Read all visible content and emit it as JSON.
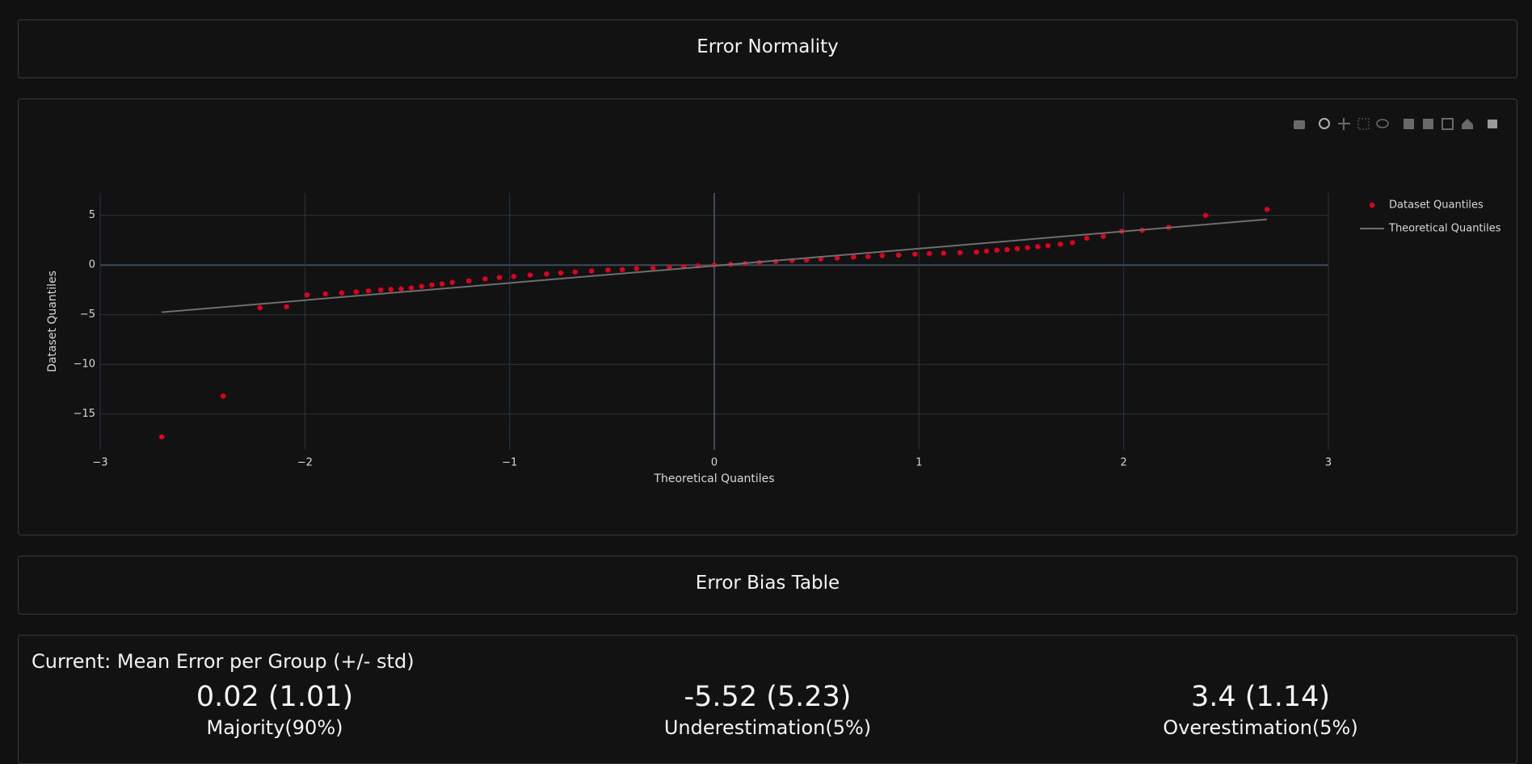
{
  "header": {
    "title": "Error Normality"
  },
  "chart_data": {
    "type": "scatter",
    "x_label": "Theoretical Quantiles",
    "y_label": "Dataset Quantiles",
    "xlim": [
      -3,
      3
    ],
    "ylim": [
      -18.6,
      7.25
    ],
    "xticks": [
      {
        "value": -3,
        "label": "−3"
      },
      {
        "value": -2,
        "label": "−2"
      },
      {
        "value": -1,
        "label": "−1"
      },
      0,
      1,
      2,
      3
    ],
    "yticks": [
      {
        "value": -15,
        "label": "−15"
      },
      {
        "value": -10,
        "label": "−10"
      },
      {
        "value": -5,
        "label": "−5"
      },
      0,
      5
    ],
    "grid": true,
    "series": [
      {
        "name": "Dataset Quantiles",
        "color": "#e0001b",
        "mode": "markers",
        "x": [
          -2.7,
          -2.4,
          -2.22,
          -2.09,
          -1.99,
          -1.9,
          -1.82,
          -1.75,
          -1.69,
          -1.63,
          -1.58,
          -1.53,
          -1.48,
          -1.43,
          -1.38,
          -1.33,
          -1.28,
          -1.2,
          -1.12,
          -1.05,
          -0.98,
          -0.9,
          -0.82,
          -0.75,
          -0.68,
          -0.6,
          -0.52,
          -0.45,
          -0.38,
          -0.3,
          -0.22,
          -0.15,
          -0.08,
          0,
          0.08,
          0.15,
          0.22,
          0.3,
          0.38,
          0.45,
          0.52,
          0.6,
          0.68,
          0.75,
          0.82,
          0.9,
          0.98,
          1.05,
          1.12,
          1.2,
          1.28,
          1.33,
          1.38,
          1.43,
          1.48,
          1.53,
          1.58,
          1.63,
          1.69,
          1.75,
          1.82,
          1.9,
          1.99,
          2.09,
          2.22,
          2.4,
          2.7
        ],
        "values": [
          -17.3,
          -13.2,
          -4.3,
          -4.2,
          -3.0,
          -2.9,
          -2.8,
          -2.7,
          -2.6,
          -2.5,
          -2.45,
          -2.4,
          -2.3,
          -2.15,
          -2.0,
          -1.9,
          -1.75,
          -1.6,
          -1.4,
          -1.25,
          -1.15,
          -1.0,
          -0.9,
          -0.8,
          -0.7,
          -0.6,
          -0.5,
          -0.45,
          -0.35,
          -0.3,
          -0.22,
          -0.15,
          -0.08,
          0,
          0.08,
          0.15,
          0.25,
          0.35,
          0.45,
          0.5,
          0.6,
          0.7,
          0.8,
          0.85,
          0.95,
          1.0,
          1.1,
          1.15,
          1.2,
          1.25,
          1.3,
          1.4,
          1.5,
          1.55,
          1.65,
          1.75,
          1.85,
          1.95,
          2.1,
          2.25,
          2.7,
          2.9,
          3.4,
          3.5,
          3.8,
          5.0,
          5.6
        ]
      },
      {
        "name": "Theoretical Quantiles",
        "color": "#6e6e6e",
        "mode": "lines",
        "x": [
          -2.7,
          2.7
        ],
        "values": [
          -4.75,
          4.6
        ]
      }
    ]
  },
  "bias_table": {
    "title": "Error Bias Table",
    "heading": "Current: Mean Error per Group (+/- std)",
    "groups": [
      {
        "value": "0.02 (1.01)",
        "label": "Majority(90%)"
      },
      {
        "value": "-5.52 (5.23)",
        "label": "Underestimation(5%)"
      },
      {
        "value": "3.4 (1.14)",
        "label": "Overestimation(5%)"
      }
    ]
  }
}
